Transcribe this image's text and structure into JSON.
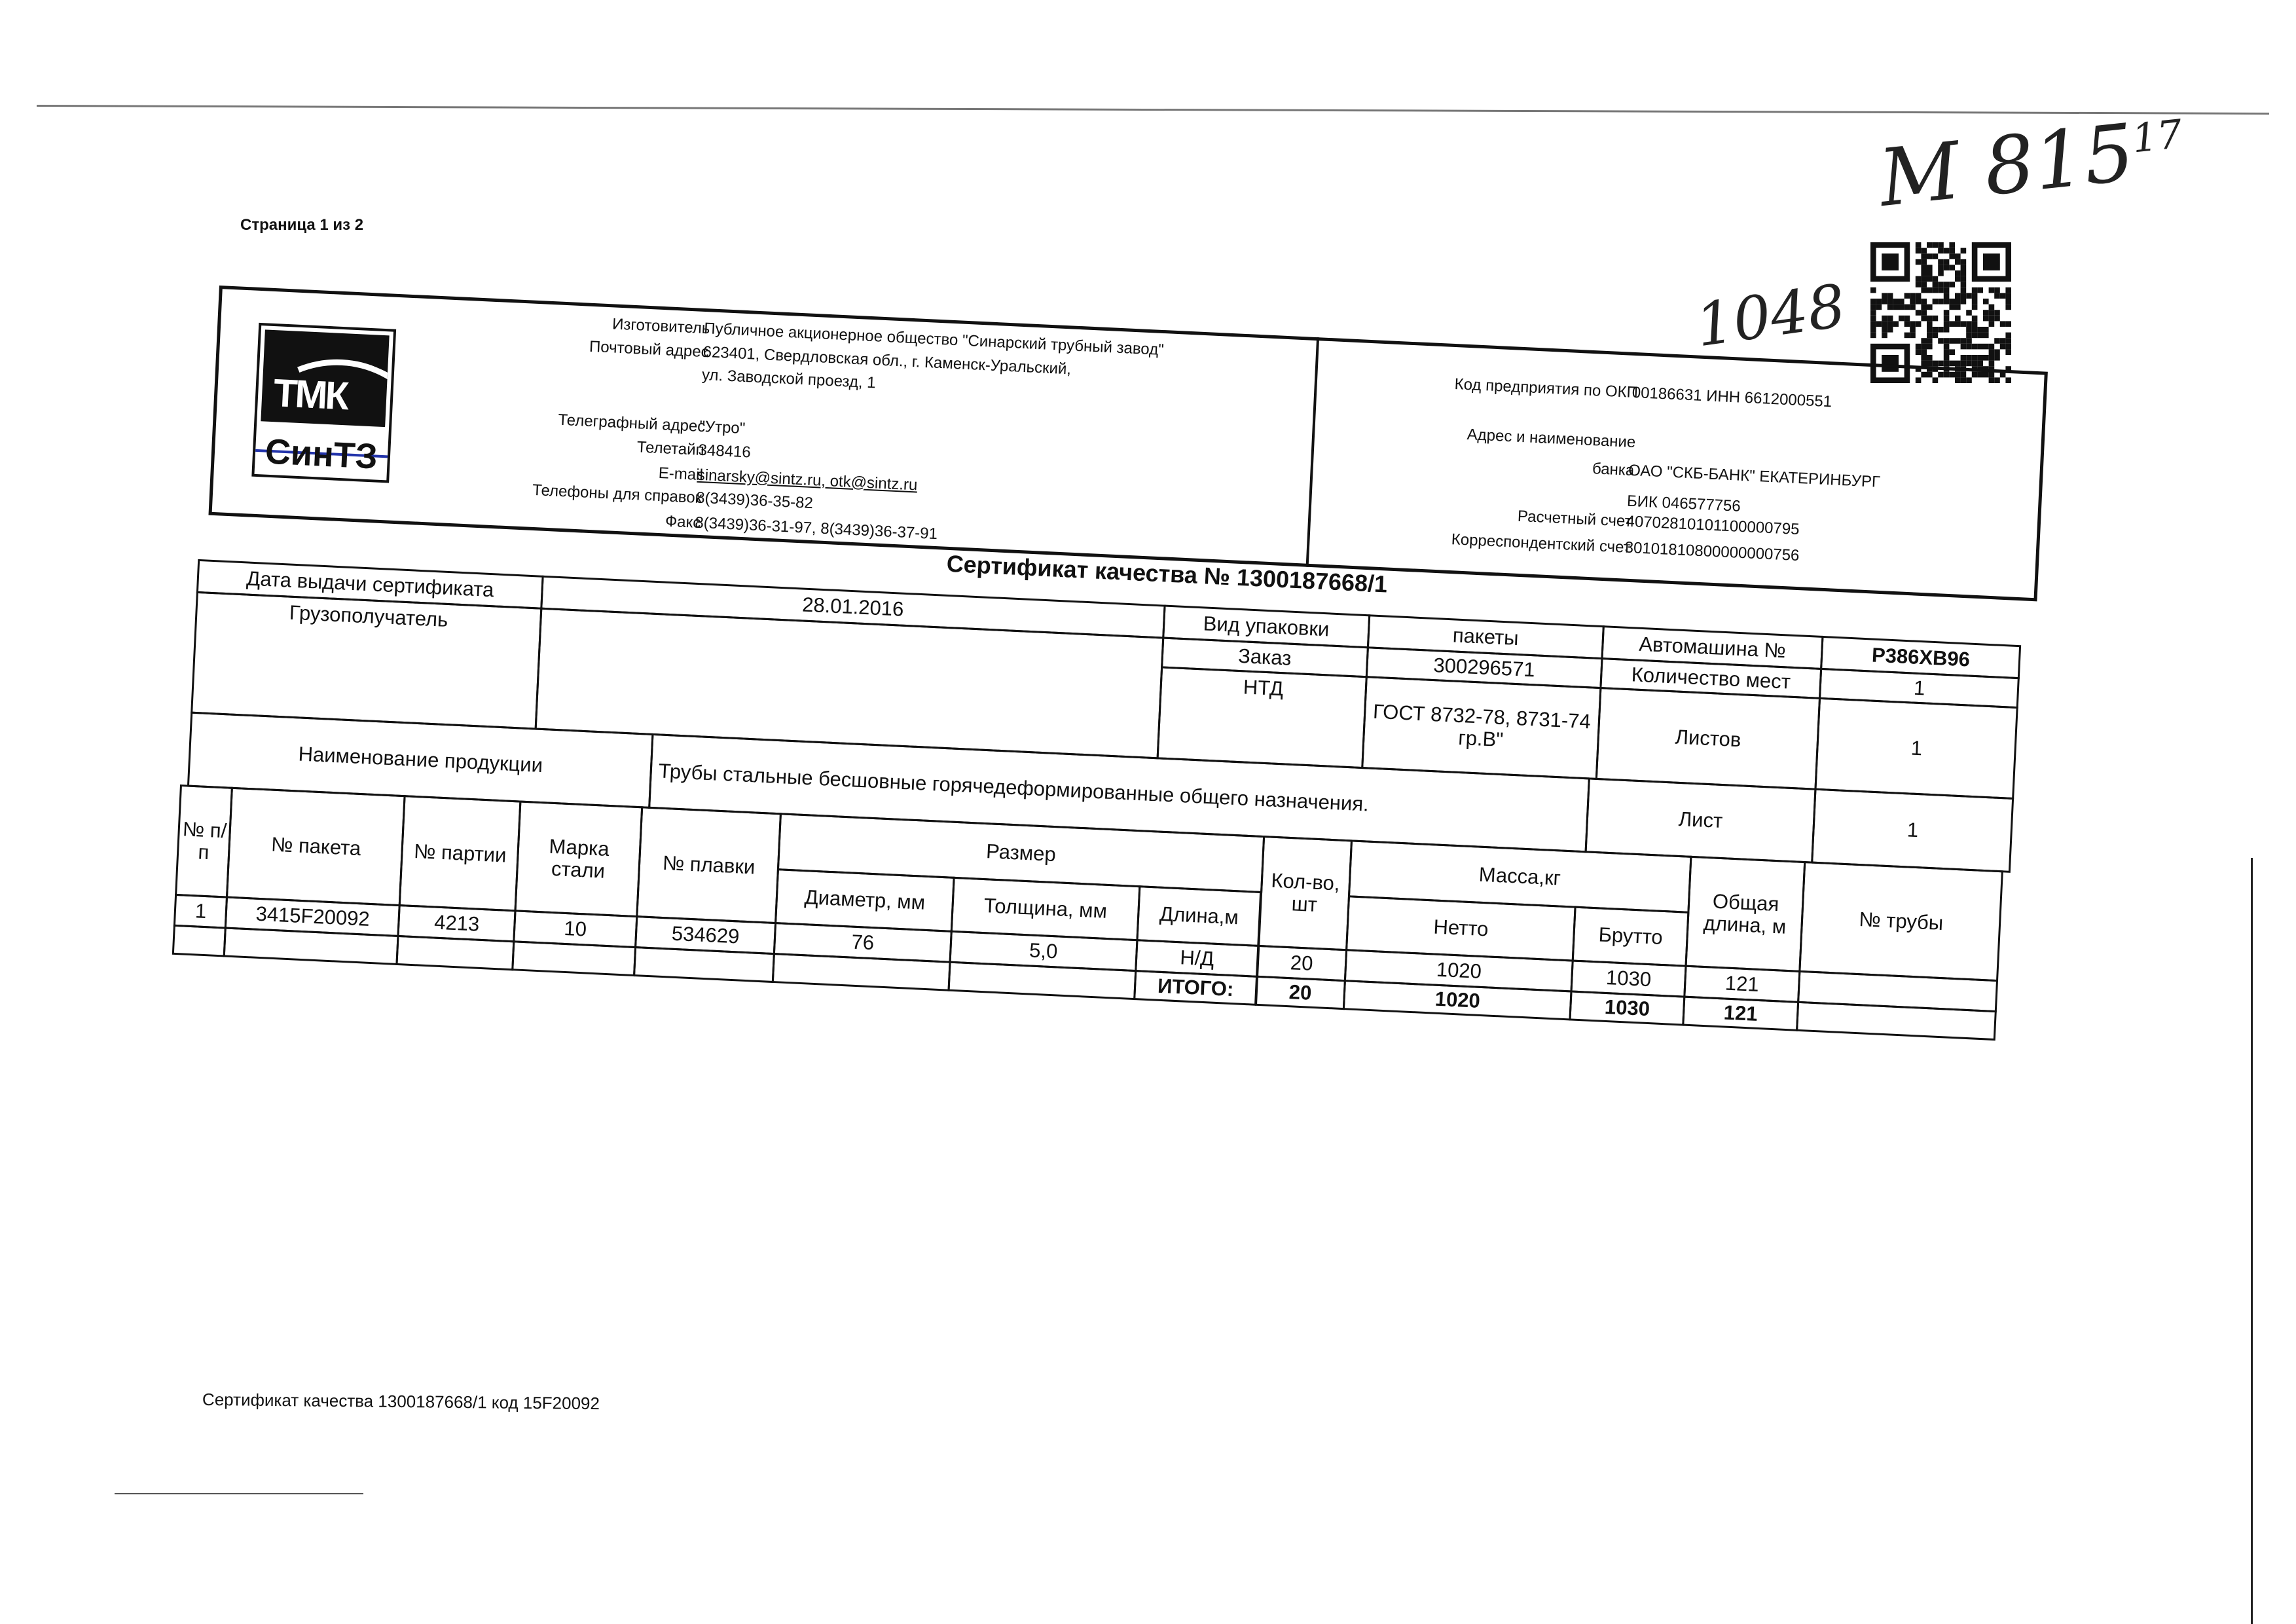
{
  "page_label": "Страница 1 из 2",
  "handwritten": {
    "reference": "М 815",
    "reference_sup": "17",
    "number": "1048"
  },
  "qr_code": {
    "icon": "qr-code"
  },
  "logo": {
    "brand_top": "ТМК",
    "brand_bottom": "СинТЗ"
  },
  "manufacturer": {
    "rows": [
      {
        "label": "Изготовитель",
        "value": "Публичное акционерное общество \"Синарский трубный завод\""
      },
      {
        "label": "Почтовый адрес",
        "value": "623401, Свердловская обл., г. Каменск-Уральский,"
      },
      {
        "label": "",
        "value": "ул. Заводской проезд, 1"
      },
      {
        "label": "Телеграфный адрес",
        "value": "\"Утро\""
      },
      {
        "label": "Телетайп",
        "value": "348416"
      },
      {
        "label": "E-mail",
        "value": "sinarsky@sintz.ru, otk@sintz.ru"
      },
      {
        "label": "Телефоны для справок",
        "value": "8(3439)36-35-82"
      },
      {
        "label": "Факс",
        "value": "8(3439)36-31-97, 8(3439)36-37-91"
      }
    ]
  },
  "bank": {
    "rows": [
      {
        "label": "Код предприятия по ОКП",
        "value": "00186631 ИНН 6612000551"
      },
      {
        "label": "Адрес и наименование",
        "value": ""
      },
      {
        "label": "банка",
        "value": "ОАО \"СКБ-БАНК\" ЕКАТЕРИНБУРГ"
      },
      {
        "label": "",
        "value": "БИК 046577756"
      },
      {
        "label": "Расчетный счет",
        "value": "40702810101100000795"
      },
      {
        "label": "Корреспондентский счет",
        "value": "30101810800000000756"
      }
    ]
  },
  "certificate": {
    "title": "Сертификат качества №  1300187668/1",
    "issue_date_label": "Дата выдачи сертификата",
    "issue_date": "28.01.2016",
    "consignee_label": "Грузополучатель",
    "consignee": "",
    "packaging_label": "Вид упаковки",
    "packaging": "пакеты",
    "order_label": "Заказ",
    "order": "300296571",
    "ntd_label": "НТД",
    "ntd": "ГОСТ 8732-78, 8731-74 гр.В\"",
    "vehicle_label": "Автомашина №",
    "vehicle": "Р386ХВ96",
    "places_label": "Количество мест",
    "places": "1",
    "sheets_label": "Листов",
    "sheets": "1",
    "sheet_label": "Лист",
    "sheet": "1",
    "product_label": "Наименование продукции",
    "product": "Трубы стальные бесшовные горячедеформированные общего назначения."
  },
  "items_table": {
    "headers": {
      "num": "№ п/п",
      "package": "№ пакета",
      "batch": "№ партии",
      "steel": "Марка стали",
      "heat": "№ плавки",
      "size": "Размер",
      "diameter": "Диаметр, мм",
      "thickness": "Толщина, мм",
      "length": "Длина,м",
      "qty": "Кол-во, шт",
      "mass": "Масса,кг",
      "net": "Нетто",
      "gross": "Брутто",
      "total_length": "Общая длина, м",
      "pipe_no": "№ трубы"
    },
    "rows": [
      {
        "num": "1",
        "package": "3415F20092",
        "batch": "4213",
        "steel": "10",
        "heat": "534629",
        "diameter": "76",
        "thickness": "5,0",
        "length": "Н/Д",
        "qty": "20",
        "net": "1020",
        "gross": "1030",
        "total_length": "121",
        "pipe_no": ""
      }
    ],
    "total": {
      "label": "ИТОГО:",
      "qty": "20",
      "net": "1020",
      "gross": "1030",
      "total_length": "121"
    }
  },
  "footer": "Сертификат качества 1300187668/1 код 15F20092"
}
